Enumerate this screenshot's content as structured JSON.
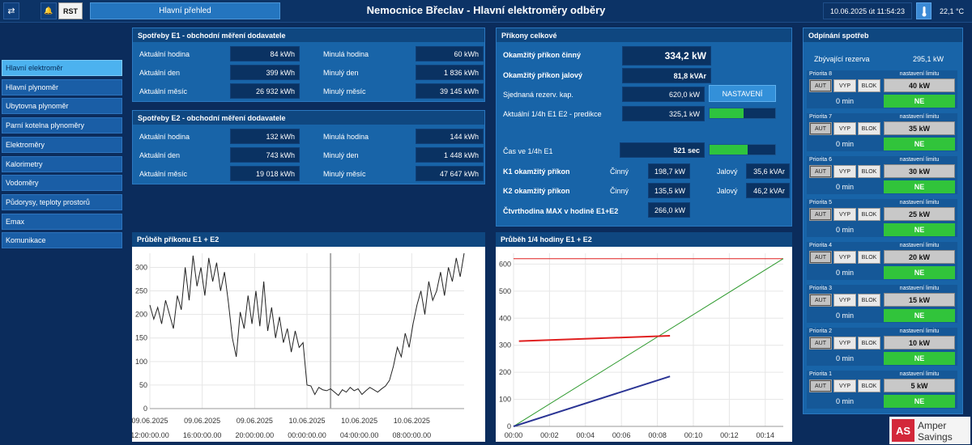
{
  "topbar": {
    "swap_icon": "⇄",
    "bell_icon": "🔔",
    "rst_label": "RST",
    "nav_main": "Hlavní přehled",
    "title": "Nemocnice Břeclav - Hlavní elektroměry odběry",
    "datetime": "10.06.2025 út 11:54:23",
    "temperature": "22,1 °C"
  },
  "sidebar": {
    "items": [
      {
        "label": "Hlavní elektroměr",
        "active": true
      },
      {
        "label": "Hlavní plynoměr"
      },
      {
        "label": "Ubytovna plynoměr"
      },
      {
        "label": "Parní kotelna plynoměry"
      },
      {
        "label": "Elektroměry"
      },
      {
        "label": "Kalorimetry"
      },
      {
        "label": "Vodoměry"
      },
      {
        "label": "Půdorysy, teploty prostorů"
      },
      {
        "label": "Emax"
      },
      {
        "label": "Komunikace"
      }
    ]
  },
  "e1": {
    "title": "Spotřeby E1 - obchodní měření dodavatele",
    "rows": [
      {
        "l1": "Aktuální hodina",
        "v1": "84 kWh",
        "l2": "Minulá hodina",
        "v2": "60 kWh"
      },
      {
        "l1": "Aktuální den",
        "v1": "399 kWh",
        "l2": "Minulý den",
        "v2": "1 836 kWh"
      },
      {
        "l1": "Aktuální měsíc",
        "v1": "26 932 kWh",
        "l2": "Minulý měsíc",
        "v2": "39 145 kWh"
      }
    ]
  },
  "e2": {
    "title": "Spotřeby E2 - obchodní měření dodavatele",
    "rows": [
      {
        "l1": "Aktuální hodina",
        "v1": "132 kWh",
        "l2": "Minulá hodina",
        "v2": "144 kWh"
      },
      {
        "l1": "Aktuální den",
        "v1": "743 kWh",
        "l2": "Minulý den",
        "v2": "1 448 kWh"
      },
      {
        "l1": "Aktuální měsíc",
        "v1": "19 018 kWh",
        "l2": "Minulý měsíc",
        "v2": "47 647 kWh"
      }
    ]
  },
  "prikony": {
    "title": "Příkony celkové",
    "okamzity_cinny_label": "Okamžitý příkon činný",
    "okamzity_cinny": "334,2 kW",
    "okamzity_jalovy_label": "Okamžitý příkon jalový",
    "okamzity_jalovy": "81,8 kVAr",
    "sjednana_label": "Sjednaná rezerv. kap.",
    "sjednana": "620,0 kW",
    "nastaveni_label": "NASTAVENÍ",
    "aktualni14_label": "Aktuální 1/4h E1 E2 - predikce",
    "aktualni14": "325,1 kW",
    "aktualni14_level": 0.52,
    "cas_label": "Čas ve 1/4h E1",
    "cas": "521 sec",
    "cas_level": 0.58,
    "k1_label": "K1 okamžitý příkon",
    "k2_label": "K2 okamžitý příkon",
    "cinny_label": "Činný",
    "jalovy_label": "Jalový",
    "k1_cinny": "198,7 kW",
    "k1_jalovy": "35,6 kVAr",
    "k2_cinny": "135,5 kW",
    "k2_jalovy": "46,2 kVAr",
    "ctvrthodina_label": "Čtvrthodina MAX v hodině E1+E2",
    "ctvrthodina": "266,0 kW"
  },
  "odpinani": {
    "title": "Odpínání spotřeb",
    "reserve_label": "Zbývající rezerva",
    "reserve": "295,1 kW",
    "limit_label": "nastavení limitu",
    "aut_label": "AUT",
    "vyp_label": "VYP",
    "blok_label": "BLOK",
    "ne_label": "NE",
    "priorities": [
      {
        "name": "Priorita 8",
        "limit": "40 kW",
        "min": "0 min"
      },
      {
        "name": "Priorita 7",
        "limit": "35 kW",
        "min": "0 min"
      },
      {
        "name": "Priorita 6",
        "limit": "30 kW",
        "min": "0 min"
      },
      {
        "name": "Priorita 5",
        "limit": "25 kW",
        "min": "0 min"
      },
      {
        "name": "Priorita 4",
        "limit": "20 kW",
        "min": "0 min"
      },
      {
        "name": "Priorita 3",
        "limit": "15 kW",
        "min": "0 min"
      },
      {
        "name": "Priorita 2",
        "limit": "10 kW",
        "min": "0 min"
      },
      {
        "name": "Priorita 1",
        "limit": "5 kW",
        "min": "0 min"
      }
    ]
  },
  "logo": {
    "mark": "AS",
    "line1": "Amper",
    "line2": "Savings"
  },
  "chart_data": [
    {
      "type": "line",
      "title": "Průběh příkonu E1 + E2",
      "ylim": [
        0,
        330
      ],
      "yticks": [
        0,
        50,
        100,
        150,
        200,
        250,
        300
      ],
      "xticks": [
        {
          "x": 0,
          "l1": "09.06.2025",
          "l2": "12:00:00.00"
        },
        {
          "x": 4,
          "l1": "09.06.2025",
          "l2": "16:00:00.00"
        },
        {
          "x": 8,
          "l1": "09.06.2025",
          "l2": "20:00:00.00"
        },
        {
          "x": 12,
          "l1": "10.06.2025",
          "l2": "00:00:00.00"
        },
        {
          "x": 16,
          "l1": "10.06.2025",
          "l2": "04:00:00.00"
        },
        {
          "x": 20,
          "l1": "10.06.2025",
          "l2": "08:00:00.00"
        }
      ],
      "xlim": [
        0,
        24
      ],
      "marker_x": 13.8,
      "series": [
        {
          "color": "#222222",
          "x": [
            0,
            0.3,
            0.6,
            0.9,
            1.2,
            1.5,
            1.8,
            2.1,
            2.4,
            2.7,
            3.0,
            3.3,
            3.6,
            3.9,
            4.2,
            4.5,
            4.8,
            5.1,
            5.4,
            5.7,
            6.0,
            6.3,
            6.6,
            6.9,
            7.2,
            7.5,
            7.8,
            8.1,
            8.4,
            8.7,
            9.0,
            9.3,
            9.6,
            9.9,
            10.2,
            10.5,
            10.8,
            11.1,
            11.4,
            11.7,
            12.0,
            12.3,
            12.6,
            12.9,
            13.2,
            13.5,
            13.8,
            14.1,
            14.4,
            14.7,
            15.0,
            15.3,
            15.6,
            15.9,
            16.2,
            16.5,
            16.8,
            17.1,
            17.4,
            17.7,
            18.0,
            18.3,
            18.6,
            18.9,
            19.2,
            19.5,
            19.8,
            20.1,
            20.4,
            20.7,
            21.0,
            21.3,
            21.6,
            21.9,
            22.2,
            22.5,
            22.8,
            23.1,
            23.4,
            23.7,
            24.0
          ],
          "y": [
            220,
            190,
            215,
            180,
            230,
            200,
            170,
            240,
            210,
            300,
            230,
            325,
            260,
            300,
            240,
            320,
            270,
            310,
            250,
            290,
            225,
            150,
            110,
            205,
            170,
            240,
            180,
            250,
            175,
            270,
            165,
            215,
            150,
            195,
            140,
            170,
            120,
            165,
            130,
            140,
            50,
            48,
            30,
            45,
            40,
            38,
            42,
            35,
            28,
            40,
            35,
            45,
            38,
            42,
            30,
            38,
            45,
            40,
            35,
            42,
            48,
            60,
            90,
            130,
            110,
            160,
            130,
            180,
            220,
            250,
            200,
            270,
            230,
            250,
            290,
            240,
            300,
            270,
            320,
            280,
            330
          ]
        }
      ]
    },
    {
      "type": "line",
      "title": "Průběh 1/4 hodiny E1 + E2",
      "ylim": [
        0,
        640
      ],
      "yticks": [
        0,
        100,
        200,
        300,
        400,
        500,
        600
      ],
      "xlim": [
        0,
        15
      ],
      "xticks": [
        "00:00",
        "00:02",
        "00:04",
        "00:06",
        "00:08",
        "00:10",
        "00:12",
        "00:14"
      ],
      "series": [
        {
          "color": "#e02020",
          "x": [
            0,
            15
          ],
          "y": [
            620,
            620
          ]
        },
        {
          "color": "#2e9a2e",
          "x": [
            0,
            15
          ],
          "y": [
            0,
            620
          ]
        },
        {
          "color": "#e02020",
          "x": [
            0.3,
            8.7
          ],
          "y": [
            315,
            335
          ]
        },
        {
          "color": "#2a3494",
          "x": [
            0,
            8.7
          ],
          "y": [
            0,
            185
          ]
        }
      ]
    }
  ]
}
